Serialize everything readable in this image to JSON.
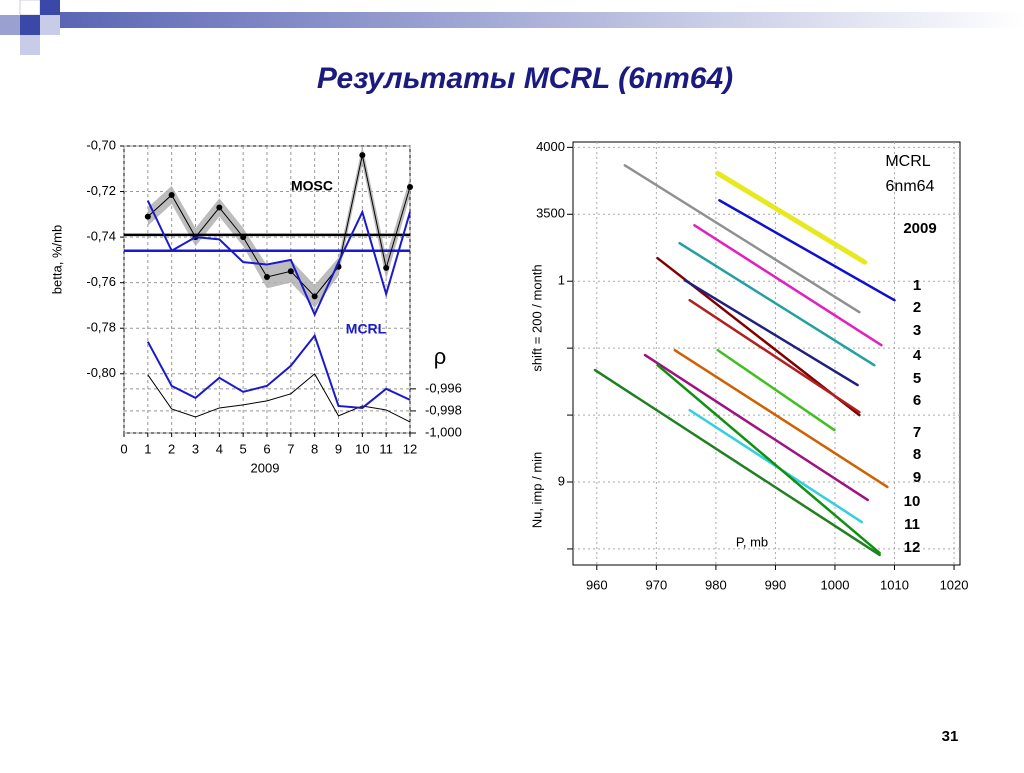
{
  "slide": {
    "title": "Результаты MCRL (6nm64)",
    "page_number": "31"
  },
  "chart_data": [
    {
      "type": "line",
      "x": [
        1,
        2,
        3,
        4,
        5,
        6,
        7,
        8,
        9,
        10,
        11,
        12
      ],
      "xlabel": "2009",
      "ylabel": "betta, %/mb",
      "y2label": "ρ",
      "xlim": [
        0,
        12
      ],
      "xticks": [
        0,
        1,
        2,
        3,
        4,
        5,
        6,
        7,
        8,
        9,
        10,
        11,
        12
      ],
      "ylim": [
        -0.826,
        -0.7
      ],
      "yticks": [
        {
          "value": -0.8,
          "label": "-0,80"
        },
        {
          "value": -0.78,
          "label": "-0,78"
        },
        {
          "value": -0.76,
          "label": "-0,76"
        },
        {
          "value": -0.74,
          "label": "-0,74"
        },
        {
          "value": -0.72,
          "label": "-0,72"
        },
        {
          "value": -0.7,
          "label": "-0,70"
        }
      ],
      "y2lim": [
        -1.0,
        -0.974
      ],
      "y2ticks": [
        {
          "value": -0.996,
          "label": "-0,996"
        },
        {
          "value": -0.998,
          "label": "-0,998"
        },
        {
          "value": -1.0,
          "label": "-1,000"
        }
      ],
      "grid": true,
      "series": [
        {
          "name": "MOSC",
          "color": "#000000",
          "values": [
            -0.731,
            -0.7215,
            -0.74,
            -0.727,
            -0.74,
            -0.7575,
            -0.755,
            -0.766,
            -0.753,
            -0.704,
            -0.7535,
            -0.718
          ],
          "errors": [
            0.004,
            0.004,
            0.004,
            0.004,
            0.004,
            0.005,
            0.005,
            0.005,
            0.004,
            0.004,
            0.005,
            0.004
          ]
        },
        {
          "name": "MCRL",
          "color": "#1a1acc",
          "values": [
            -0.724,
            -0.746,
            -0.74,
            -0.741,
            -0.751,
            -0.752,
            -0.75,
            -0.774,
            -0.751,
            -0.729,
            -0.765,
            -0.729
          ]
        },
        {
          "color": "#000000",
          "axis": "y2",
          "values": [
            -0.99473,
            -0.99782,
            -0.99855,
            -0.99773,
            -0.99745,
            -0.99709,
            -0.99645,
            -0.99464,
            -0.99845,
            -0.99755,
            -0.99791,
            -0.999
          ]
        },
        {
          "color": "#1a1acc",
          "axis": "y2",
          "values": [
            -0.99173,
            -0.99573,
            -0.99682,
            -0.995,
            -0.99627,
            -0.99573,
            -0.99391,
            -0.99118,
            -0.99755,
            -0.99773,
            -0.996,
            -0.997
          ]
        }
      ],
      "hlines": [
        {
          "value": -0.739,
          "color": "#000000"
        },
        {
          "value": -0.746,
          "color": "#1a1acc"
        }
      ]
    },
    {
      "type": "line",
      "xlabel": "P, mb",
      "ylabel": "Nu,  imp / min",
      "ylabel2": "shift = 200 / month",
      "xlim": [
        956,
        1021
      ],
      "xticks": [
        960,
        970,
        980,
        990,
        1000,
        1010,
        1020
      ],
      "ylim": [
        880,
        4040
      ],
      "yticks": [
        4000,
        3500,
        {
          "value": 3000,
          "label": "1"
        },
        {
          "value": 1500,
          "label": "9"
        }
      ],
      "ygrid": [
        2500,
        2000,
        1000
      ],
      "grid": true,
      "annotations": [
        "MCRL",
        "6nm64",
        "2009",
        "1",
        "2",
        "3",
        "4",
        "5",
        "6",
        "7",
        "8",
        "9",
        "10",
        "11",
        "12"
      ],
      "series": [
        {
          "color": "#e8e820",
          "x": [
            980.3,
            1005.0
          ],
          "values": [
            3806,
            3142
          ]
        },
        {
          "color": "#1010d0",
          "x": [
            980.6,
            1010.0
          ],
          "values": [
            3604,
            2858
          ]
        },
        {
          "color": "#909090",
          "x": [
            964.7,
            1004.1
          ],
          "values": [
            3866,
            2769
          ]
        },
        {
          "color": "#e020c0",
          "x": [
            976.4,
            1007.8
          ],
          "values": [
            3418,
            2522
          ]
        },
        {
          "color": "#20a0a0",
          "x": [
            973.9,
            1006.6
          ],
          "values": [
            3284,
            2373
          ]
        },
        {
          "color": "#800000",
          "x": [
            970.2,
            1004.1
          ],
          "values": [
            3172,
            2000
          ]
        },
        {
          "color": "#202080",
          "x": [
            974.8,
            1003.8
          ],
          "values": [
            3007,
            2224
          ]
        },
        {
          "color": "#40c020",
          "x": [
            980.3,
            999.9
          ],
          "values": [
            2485,
            1888
          ]
        },
        {
          "color": "#b02020",
          "x": [
            975.6,
            1004.1
          ],
          "values": [
            2858,
            2022
          ]
        },
        {
          "color": "#d06000",
          "x": [
            973.1,
            1008.8
          ],
          "values": [
            2485,
            1463
          ]
        },
        {
          "color": "#a01080",
          "x": [
            968.1,
            1005.5
          ],
          "values": [
            2448,
            1366
          ]
        },
        {
          "color": "#30d0e0",
          "x": [
            975.6,
            1004.5
          ],
          "values": [
            2037,
            1201
          ]
        },
        {
          "color": "#208020",
          "x": [
            959.7,
            1007.5
          ],
          "values": [
            2336,
            955
          ]
        },
        {
          "color": "#109010",
          "x": [
            970.2,
            1007.5
          ],
          "values": [
            2373,
            970
          ]
        }
      ]
    }
  ]
}
